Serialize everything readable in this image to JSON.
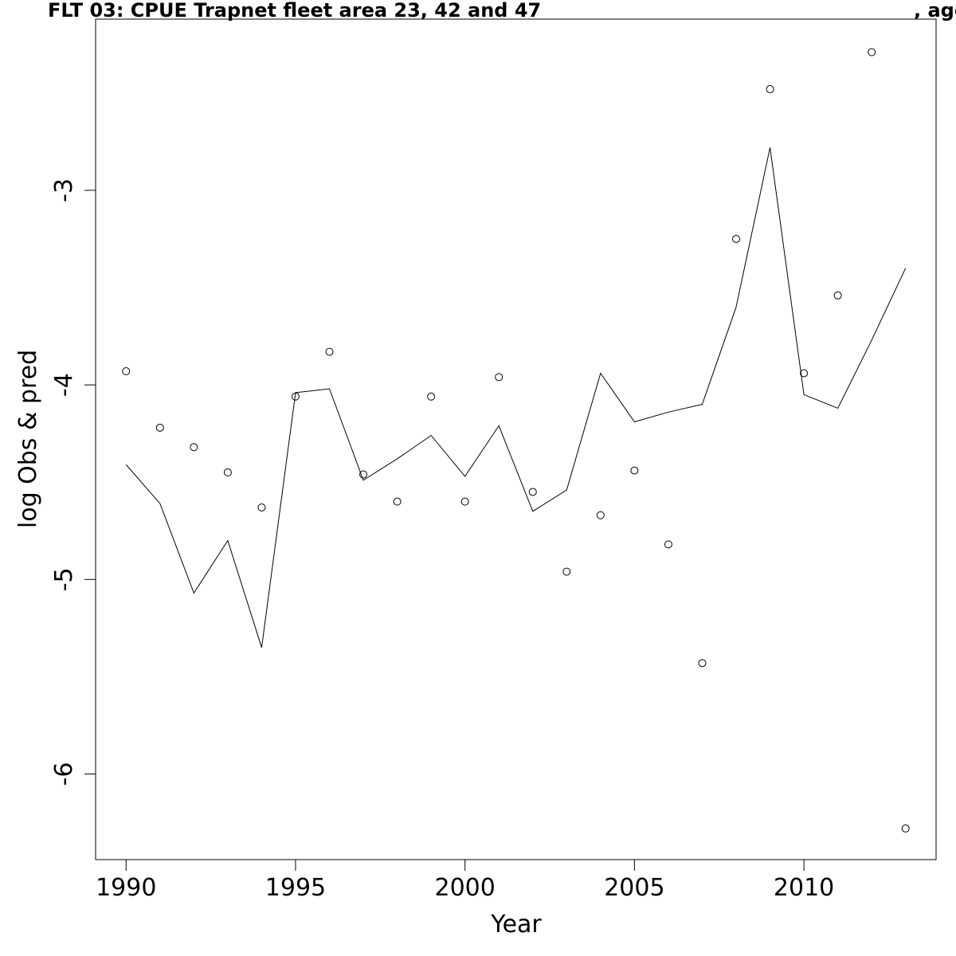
{
  "chart_data": {
    "type": "line",
    "title": "FLT 03: CPUE Trapnet fleet area 23, 42 and 47",
    "title_suffix": ", age",
    "xlabel": "Year",
    "ylabel": "log Obs & pred",
    "xlim": [
      1989.1,
      2013.9
    ],
    "ylim": [
      -6.44,
      -2.12
    ],
    "x_ticks": [
      1990,
      1995,
      2000,
      2005,
      2010
    ],
    "y_ticks": [
      -6,
      -5,
      -4,
      -3
    ],
    "grid": false,
    "legend": "none",
    "series": [
      {
        "style": "points",
        "x": [
          1990,
          1991,
          1992,
          1993,
          1994,
          1995,
          1996,
          1997,
          1998,
          1999,
          2000,
          2001,
          2002,
          2003,
          2004,
          2005,
          2006,
          2007,
          2008,
          2009,
          2010,
          2011,
          2012,
          2013
        ],
        "values": [
          -3.93,
          -4.22,
          -4.32,
          -4.45,
          -4.63,
          -4.06,
          -3.83,
          -4.46,
          -4.6,
          -4.06,
          -4.6,
          -3.96,
          -4.55,
          -4.96,
          -4.67,
          -4.44,
          -4.82,
          -5.43,
          -3.25,
          -2.48,
          -3.94,
          -3.54,
          -2.29,
          -6.28
        ]
      },
      {
        "style": "line",
        "x": [
          1990,
          1991,
          1992,
          1993,
          1994,
          1995,
          1996,
          1997,
          1998,
          1999,
          2000,
          2001,
          2002,
          2003,
          2004,
          2005,
          2006,
          2007,
          2008,
          2009,
          2010,
          2011,
          2012,
          2013
        ],
        "values": [
          -4.41,
          -4.61,
          -5.07,
          -4.8,
          -5.35,
          -4.04,
          -4.02,
          -4.49,
          -4.38,
          -4.26,
          -4.47,
          -4.21,
          -4.65,
          -4.54,
          -3.94,
          -4.19,
          -4.14,
          -4.1,
          -3.6,
          -2.78,
          -4.05,
          -4.12,
          -3.77,
          -3.4
        ]
      }
    ]
  }
}
